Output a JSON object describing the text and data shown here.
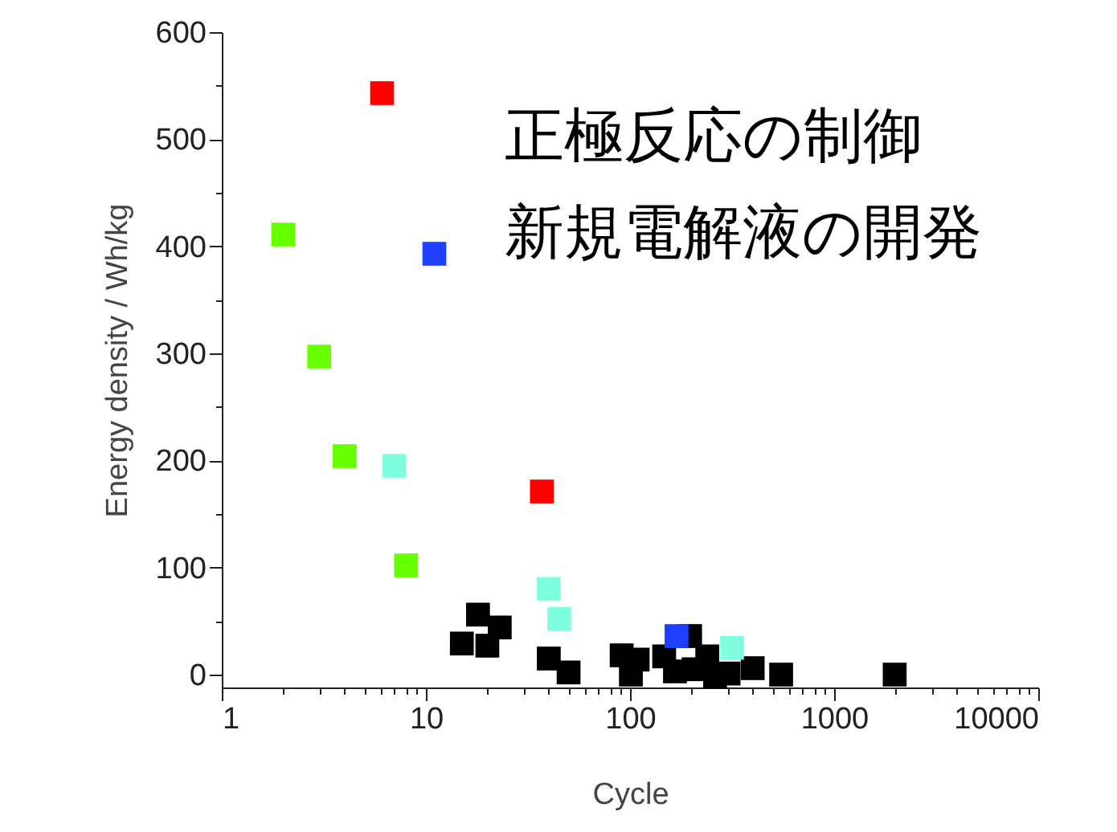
{
  "chart_data": {
    "type": "scatter",
    "xlabel": "Cycle",
    "ylabel": "Energy density / Wh/kg",
    "log": "x",
    "marker": "square",
    "grid": false,
    "legend": false,
    "xlim": [
      1,
      10000
    ],
    "ylim": [
      -12,
      600
    ],
    "xticks": [
      1,
      {
        "value": 2,
        "label": null
      },
      {
        "value": 3,
        "label": null
      },
      {
        "value": 4,
        "label": null
      },
      {
        "value": 5,
        "label": null
      },
      {
        "value": 6,
        "label": null
      },
      {
        "value": 7,
        "label": null
      },
      {
        "value": 8,
        "label": null
      },
      {
        "value": 9,
        "label": null
      },
      10,
      {
        "value": 20,
        "label": null
      },
      {
        "value": 30,
        "label": null
      },
      {
        "value": 40,
        "label": null
      },
      {
        "value": 50,
        "label": null
      },
      {
        "value": 60,
        "label": null
      },
      {
        "value": 70,
        "label": null
      },
      {
        "value": 80,
        "label": null
      },
      {
        "value": 90,
        "label": null
      },
      100,
      {
        "value": 200,
        "label": null
      },
      {
        "value": 300,
        "label": null
      },
      {
        "value": 400,
        "label": null
      },
      {
        "value": 500,
        "label": null
      },
      {
        "value": 600,
        "label": null
      },
      {
        "value": 700,
        "label": null
      },
      {
        "value": 800,
        "label": null
      },
      {
        "value": 900,
        "label": null
      },
      1000,
      {
        "value": 2000,
        "label": null
      },
      {
        "value": 3000,
        "label": null
      },
      {
        "value": 4000,
        "label": null
      },
      {
        "value": 5000,
        "label": null
      },
      {
        "value": 6000,
        "label": null
      },
      {
        "value": 7000,
        "label": null
      },
      {
        "value": 8000,
        "label": null
      },
      {
        "value": 9000,
        "label": null
      },
      10000
    ],
    "yticks": [
      0,
      {
        "value": 50,
        "label": null
      },
      100,
      {
        "value": 150,
        "label": null
      },
      200,
      {
        "value": 250,
        "label": null
      },
      300,
      {
        "value": 350,
        "label": null
      },
      400,
      {
        "value": 450,
        "label": null
      },
      500,
      {
        "value": 550,
        "label": null
      },
      600
    ],
    "annotations": [
      "正極反応の制御",
      "新規電解液の開発"
    ],
    "series": [
      {
        "color": "#000000",
        "x": [
          18,
          23,
          15,
          20,
          40,
          50,
          91,
          109,
          101,
          147,
          197,
          166,
          205,
          239,
          261,
          304,
          399,
          550,
          1980
        ],
        "values": [
          56,
          44,
          29,
          27,
          15,
          2,
          18,
          14,
          0,
          17,
          36,
          3,
          5,
          17,
          -2,
          1,
          6,
          0,
          0
        ]
      },
      {
        "color": "#66ff00",
        "x": [
          2,
          3,
          4,
          8
        ],
        "values": [
          411,
          297,
          204,
          102
        ]
      },
      {
        "color": "#7fffdf",
        "x": [
          7,
          40,
          45,
          316
        ],
        "values": [
          195,
          80,
          52,
          25
        ]
      },
      {
        "color": "#ff0000",
        "x": [
          6.1,
          37
        ],
        "values": [
          543,
          171
        ]
      },
      {
        "color": "#1f3fff",
        "x": [
          11,
          169
        ],
        "values": [
          393,
          36
        ]
      }
    ]
  }
}
